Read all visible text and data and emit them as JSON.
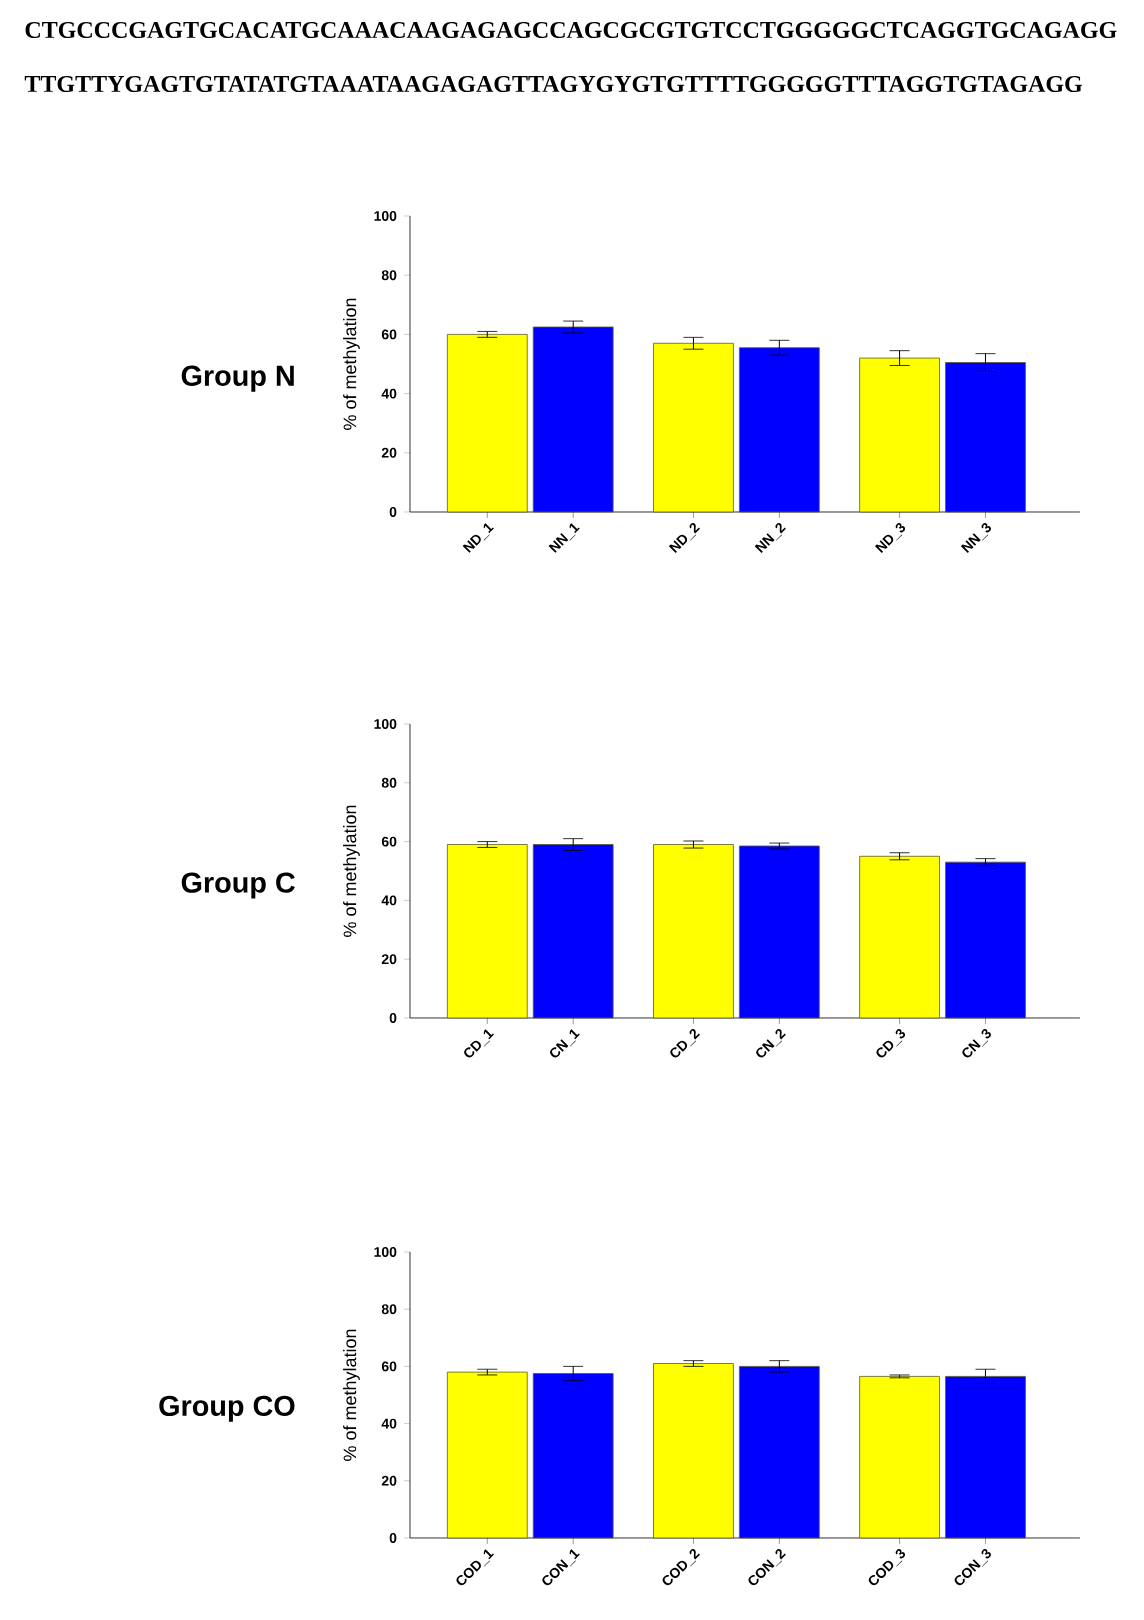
{
  "chart_data": [
    {
      "type": "bar",
      "title": "Group N",
      "ylabel": "% of methylation",
      "annotations": [
        "CTGCCCGAGTGCACATGCAAACAAGAGAGCCAGCGCGTGTCCTGGGGGCTCAGGTGCAGAGG",
        "TTGTTYGAGTGTATATGTAAATAAGAGAGTTAGYGYGTGTTTTGGGGGTTTAGGTGTAGAGG"
      ],
      "categories": [
        "ND_1",
        "NN_1",
        "ND_2",
        "NN_2",
        "ND_3",
        "NN_3"
      ],
      "values": [
        60,
        62.5,
        57,
        55.5,
        52,
        50.5
      ],
      "errors": [
        1,
        2,
        2,
        2.5,
        2.5,
        3
      ],
      "colors": [
        "#ffff00",
        "#0000ff",
        "#ffff00",
        "#0000ff",
        "#ffff00",
        "#0000ff"
      ],
      "ylim": [
        0,
        100
      ],
      "yticks": [
        0,
        20,
        40,
        60,
        80,
        100
      ]
    },
    {
      "type": "bar",
      "title": "Group C",
      "ylabel": "% of methylation",
      "categories": [
        "CD_1",
        "CN_1",
        "CD_2",
        "CN_2",
        "CD_3",
        "CN_3"
      ],
      "values": [
        59,
        59,
        59,
        58.5,
        55,
        53
      ],
      "errors": [
        1,
        2,
        1.2,
        1,
        1.2,
        1.2
      ],
      "colors": [
        "#ffff00",
        "#0000ff",
        "#ffff00",
        "#0000ff",
        "#ffff00",
        "#0000ff"
      ],
      "ylim": [
        0,
        100
      ],
      "yticks": [
        0,
        20,
        40,
        60,
        80,
        100
      ]
    },
    {
      "type": "bar",
      "title": "Group CO",
      "ylabel": "% of methylation",
      "categories": [
        "COD_1",
        "CON_1",
        "COD_2",
        "CON_2",
        "COD_3",
        "CON_3"
      ],
      "values": [
        58,
        57.5,
        61,
        60,
        56.5,
        56.5
      ],
      "errors": [
        1,
        2.5,
        1,
        2,
        0.5,
        2.5
      ],
      "colors": [
        "#ffff00",
        "#0000ff",
        "#ffff00",
        "#0000ff",
        "#ffff00",
        "#0000ff"
      ],
      "ylim": [
        0,
        100
      ],
      "yticks": [
        0,
        20,
        40,
        60,
        80,
        100
      ]
    }
  ]
}
